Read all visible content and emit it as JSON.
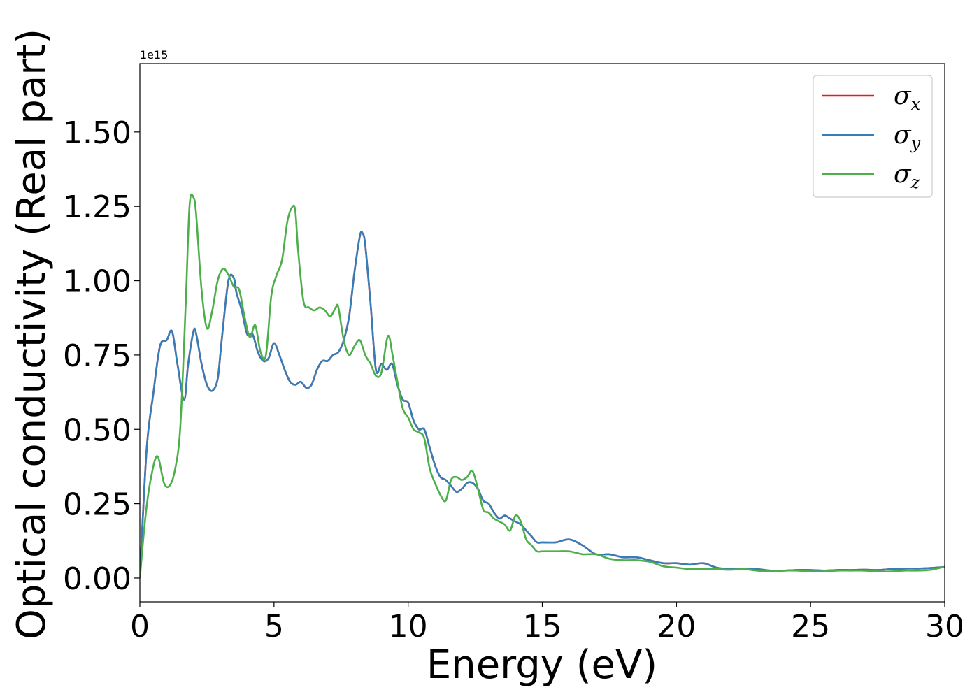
{
  "chart_data": {
    "type": "line",
    "xlabel": "Energy (eV)",
    "ylabel": "Optical conductivity (Real part)",
    "y_offset_label": "1e15",
    "xlim": [
      0,
      30
    ],
    "ylim": [
      -0.08,
      1.73
    ],
    "x_ticks": [
      0,
      5,
      10,
      15,
      20,
      25,
      30
    ],
    "x_tick_labels": [
      "0",
      "5",
      "10",
      "15",
      "20",
      "25",
      "30"
    ],
    "y_ticks": [
      0.0,
      0.25,
      0.5,
      0.75,
      1.0,
      1.25,
      1.5
    ],
    "y_tick_labels": [
      "0.00",
      "0.25",
      "0.50",
      "0.75",
      "1.00",
      "1.25",
      "1.50"
    ],
    "grid": false,
    "legend_position": "top-right",
    "series": [
      {
        "name": "σ_x",
        "legend_base": "σ",
        "legend_sub": "x",
        "color": "#e41a1c",
        "x": [
          0,
          0.25,
          0.5,
          0.75,
          1.0,
          1.2,
          1.4,
          1.65,
          1.8,
          2.0,
          2.1,
          2.3,
          2.5,
          2.7,
          2.9,
          3.05,
          3.3,
          3.5,
          3.6,
          3.8,
          4.0,
          4.2,
          4.4,
          4.6,
          4.8,
          5.0,
          5.2,
          5.4,
          5.6,
          5.8,
          6.0,
          6.2,
          6.4,
          6.6,
          6.8,
          7.0,
          7.2,
          7.4,
          7.6,
          7.8,
          8.0,
          8.2,
          8.3,
          8.4,
          8.6,
          8.8,
          9.0,
          9.2,
          9.4,
          9.6,
          9.8,
          10.0,
          10.2,
          10.4,
          10.6,
          10.8,
          11.0,
          11.2,
          11.4,
          11.6,
          11.8,
          12.0,
          12.2,
          12.4,
          12.6,
          12.8,
          13.0,
          13.2,
          13.4,
          13.6,
          13.8,
          14.0,
          14.2,
          14.4,
          14.6,
          14.8,
          15.0,
          15.5,
          16.0,
          16.5,
          17.0,
          17.5,
          18.0,
          18.5,
          19.0,
          19.5,
          20.0,
          20.5,
          21.0,
          21.5,
          22.0,
          22.5,
          23.0,
          23.5,
          24.0,
          24.5,
          25.0,
          25.5,
          26.0,
          26.5,
          27.0,
          27.5,
          28.0,
          28.5,
          29.0,
          29.5,
          30.0
        ],
        "y": [
          0,
          0.43,
          0.62,
          0.78,
          0.8,
          0.83,
          0.72,
          0.6,
          0.72,
          0.83,
          0.82,
          0.72,
          0.65,
          0.63,
          0.67,
          0.8,
          1.0,
          1.01,
          0.96,
          0.9,
          0.82,
          0.82,
          0.76,
          0.73,
          0.74,
          0.79,
          0.75,
          0.7,
          0.66,
          0.65,
          0.66,
          0.64,
          0.65,
          0.7,
          0.73,
          0.73,
          0.75,
          0.76,
          0.8,
          0.88,
          1.03,
          1.15,
          1.16,
          1.12,
          0.92,
          0.7,
          0.72,
          0.7,
          0.72,
          0.65,
          0.6,
          0.59,
          0.53,
          0.5,
          0.5,
          0.44,
          0.38,
          0.34,
          0.33,
          0.31,
          0.29,
          0.3,
          0.32,
          0.32,
          0.3,
          0.26,
          0.25,
          0.22,
          0.2,
          0.21,
          0.2,
          0.19,
          0.18,
          0.16,
          0.14,
          0.12,
          0.12,
          0.12,
          0.13,
          0.11,
          0.08,
          0.08,
          0.07,
          0.07,
          0.06,
          0.05,
          0.05,
          0.045,
          0.05,
          0.035,
          0.03,
          0.03,
          0.03,
          0.025,
          0.025,
          0.027,
          0.027,
          0.025,
          0.027,
          0.027,
          0.028,
          0.027,
          0.03,
          0.032,
          0.032,
          0.034,
          0.037
        ]
      },
      {
        "name": "σ_y",
        "legend_base": "σ",
        "legend_sub": "y",
        "color": "#377eb8",
        "x": [
          0,
          0.25,
          0.5,
          0.75,
          1.0,
          1.2,
          1.4,
          1.65,
          1.8,
          2.0,
          2.1,
          2.3,
          2.5,
          2.7,
          2.9,
          3.05,
          3.3,
          3.5,
          3.6,
          3.8,
          4.0,
          4.2,
          4.4,
          4.6,
          4.8,
          5.0,
          5.2,
          5.4,
          5.6,
          5.8,
          6.0,
          6.2,
          6.4,
          6.6,
          6.8,
          7.0,
          7.2,
          7.4,
          7.6,
          7.8,
          8.0,
          8.2,
          8.3,
          8.4,
          8.6,
          8.8,
          9.0,
          9.2,
          9.4,
          9.6,
          9.8,
          10.0,
          10.2,
          10.4,
          10.6,
          10.8,
          11.0,
          11.2,
          11.4,
          11.6,
          11.8,
          12.0,
          12.2,
          12.4,
          12.6,
          12.8,
          13.0,
          13.2,
          13.4,
          13.6,
          13.8,
          14.0,
          14.2,
          14.4,
          14.6,
          14.8,
          15.0,
          15.5,
          16.0,
          16.5,
          17.0,
          17.5,
          18.0,
          18.5,
          19.0,
          19.5,
          20.0,
          20.5,
          21.0,
          21.5,
          22.0,
          22.5,
          23.0,
          23.5,
          24.0,
          24.5,
          25.0,
          25.5,
          26.0,
          26.5,
          27.0,
          27.5,
          28.0,
          28.5,
          29.0,
          29.5,
          30.0
        ],
        "y": [
          0,
          0.43,
          0.62,
          0.78,
          0.8,
          0.83,
          0.72,
          0.6,
          0.72,
          0.83,
          0.82,
          0.72,
          0.65,
          0.63,
          0.67,
          0.8,
          1.0,
          1.01,
          0.96,
          0.9,
          0.82,
          0.82,
          0.76,
          0.73,
          0.74,
          0.79,
          0.75,
          0.7,
          0.66,
          0.65,
          0.66,
          0.64,
          0.65,
          0.7,
          0.73,
          0.73,
          0.75,
          0.76,
          0.8,
          0.88,
          1.03,
          1.15,
          1.16,
          1.12,
          0.92,
          0.7,
          0.72,
          0.7,
          0.72,
          0.65,
          0.6,
          0.59,
          0.53,
          0.5,
          0.5,
          0.44,
          0.38,
          0.34,
          0.33,
          0.31,
          0.29,
          0.3,
          0.32,
          0.32,
          0.3,
          0.26,
          0.25,
          0.22,
          0.2,
          0.21,
          0.2,
          0.19,
          0.18,
          0.16,
          0.14,
          0.12,
          0.12,
          0.12,
          0.13,
          0.11,
          0.08,
          0.08,
          0.07,
          0.07,
          0.06,
          0.05,
          0.05,
          0.045,
          0.05,
          0.035,
          0.03,
          0.03,
          0.03,
          0.025,
          0.025,
          0.027,
          0.027,
          0.025,
          0.027,
          0.027,
          0.028,
          0.027,
          0.03,
          0.032,
          0.032,
          0.034,
          0.037
        ]
      },
      {
        "name": "σ_z",
        "legend_base": "σ",
        "legend_sub": "z",
        "color": "#4daf4a",
        "x": [
          0,
          0.2,
          0.4,
          0.65,
          0.9,
          1.1,
          1.3,
          1.5,
          1.7,
          1.85,
          2.0,
          2.1,
          2.3,
          2.5,
          2.7,
          2.9,
          3.1,
          3.3,
          3.5,
          3.7,
          3.9,
          4.1,
          4.3,
          4.5,
          4.7,
          4.9,
          5.1,
          5.3,
          5.5,
          5.7,
          5.8,
          5.9,
          6.1,
          6.3,
          6.5,
          6.7,
          6.9,
          7.1,
          7.3,
          7.4,
          7.6,
          7.8,
          8.0,
          8.2,
          8.4,
          8.6,
          8.8,
          9.0,
          9.2,
          9.3,
          9.4,
          9.6,
          9.8,
          10.0,
          10.2,
          10.4,
          10.6,
          10.8,
          11.0,
          11.2,
          11.4,
          11.6,
          11.8,
          12.0,
          12.2,
          12.4,
          12.6,
          12.8,
          13.0,
          13.2,
          13.4,
          13.6,
          13.8,
          14.0,
          14.2,
          14.4,
          14.6,
          14.8,
          15.0,
          15.5,
          16.0,
          16.5,
          17.0,
          17.5,
          18.0,
          18.5,
          19.0,
          19.5,
          20.0,
          20.5,
          21.0,
          21.5,
          22.0,
          22.5,
          23.0,
          23.5,
          24.0,
          24.5,
          25.0,
          25.5,
          26.0,
          26.5,
          27.0,
          27.5,
          28.0,
          28.5,
          29.0,
          29.5,
          30.0
        ],
        "y": [
          0,
          0.2,
          0.33,
          0.41,
          0.32,
          0.31,
          0.36,
          0.5,
          0.9,
          1.25,
          1.28,
          1.22,
          0.97,
          0.84,
          0.9,
          1.0,
          1.04,
          1.02,
          0.98,
          0.97,
          0.88,
          0.81,
          0.85,
          0.76,
          0.75,
          0.95,
          1.02,
          1.07,
          1.2,
          1.25,
          1.23,
          1.1,
          0.93,
          0.91,
          0.9,
          0.91,
          0.9,
          0.88,
          0.91,
          0.91,
          0.8,
          0.75,
          0.78,
          0.8,
          0.75,
          0.72,
          0.68,
          0.69,
          0.8,
          0.81,
          0.76,
          0.66,
          0.57,
          0.54,
          0.5,
          0.49,
          0.47,
          0.37,
          0.32,
          0.28,
          0.26,
          0.33,
          0.34,
          0.33,
          0.34,
          0.36,
          0.3,
          0.23,
          0.22,
          0.2,
          0.19,
          0.18,
          0.16,
          0.21,
          0.19,
          0.13,
          0.11,
          0.09,
          0.09,
          0.09,
          0.09,
          0.08,
          0.08,
          0.065,
          0.06,
          0.06,
          0.055,
          0.04,
          0.035,
          0.03,
          0.03,
          0.03,
          0.028,
          0.03,
          0.025,
          0.022,
          0.025,
          0.025,
          0.022,
          0.022,
          0.025,
          0.025,
          0.025,
          0.022,
          0.022,
          0.025,
          0.025,
          0.028,
          0.038
        ]
      }
    ]
  }
}
